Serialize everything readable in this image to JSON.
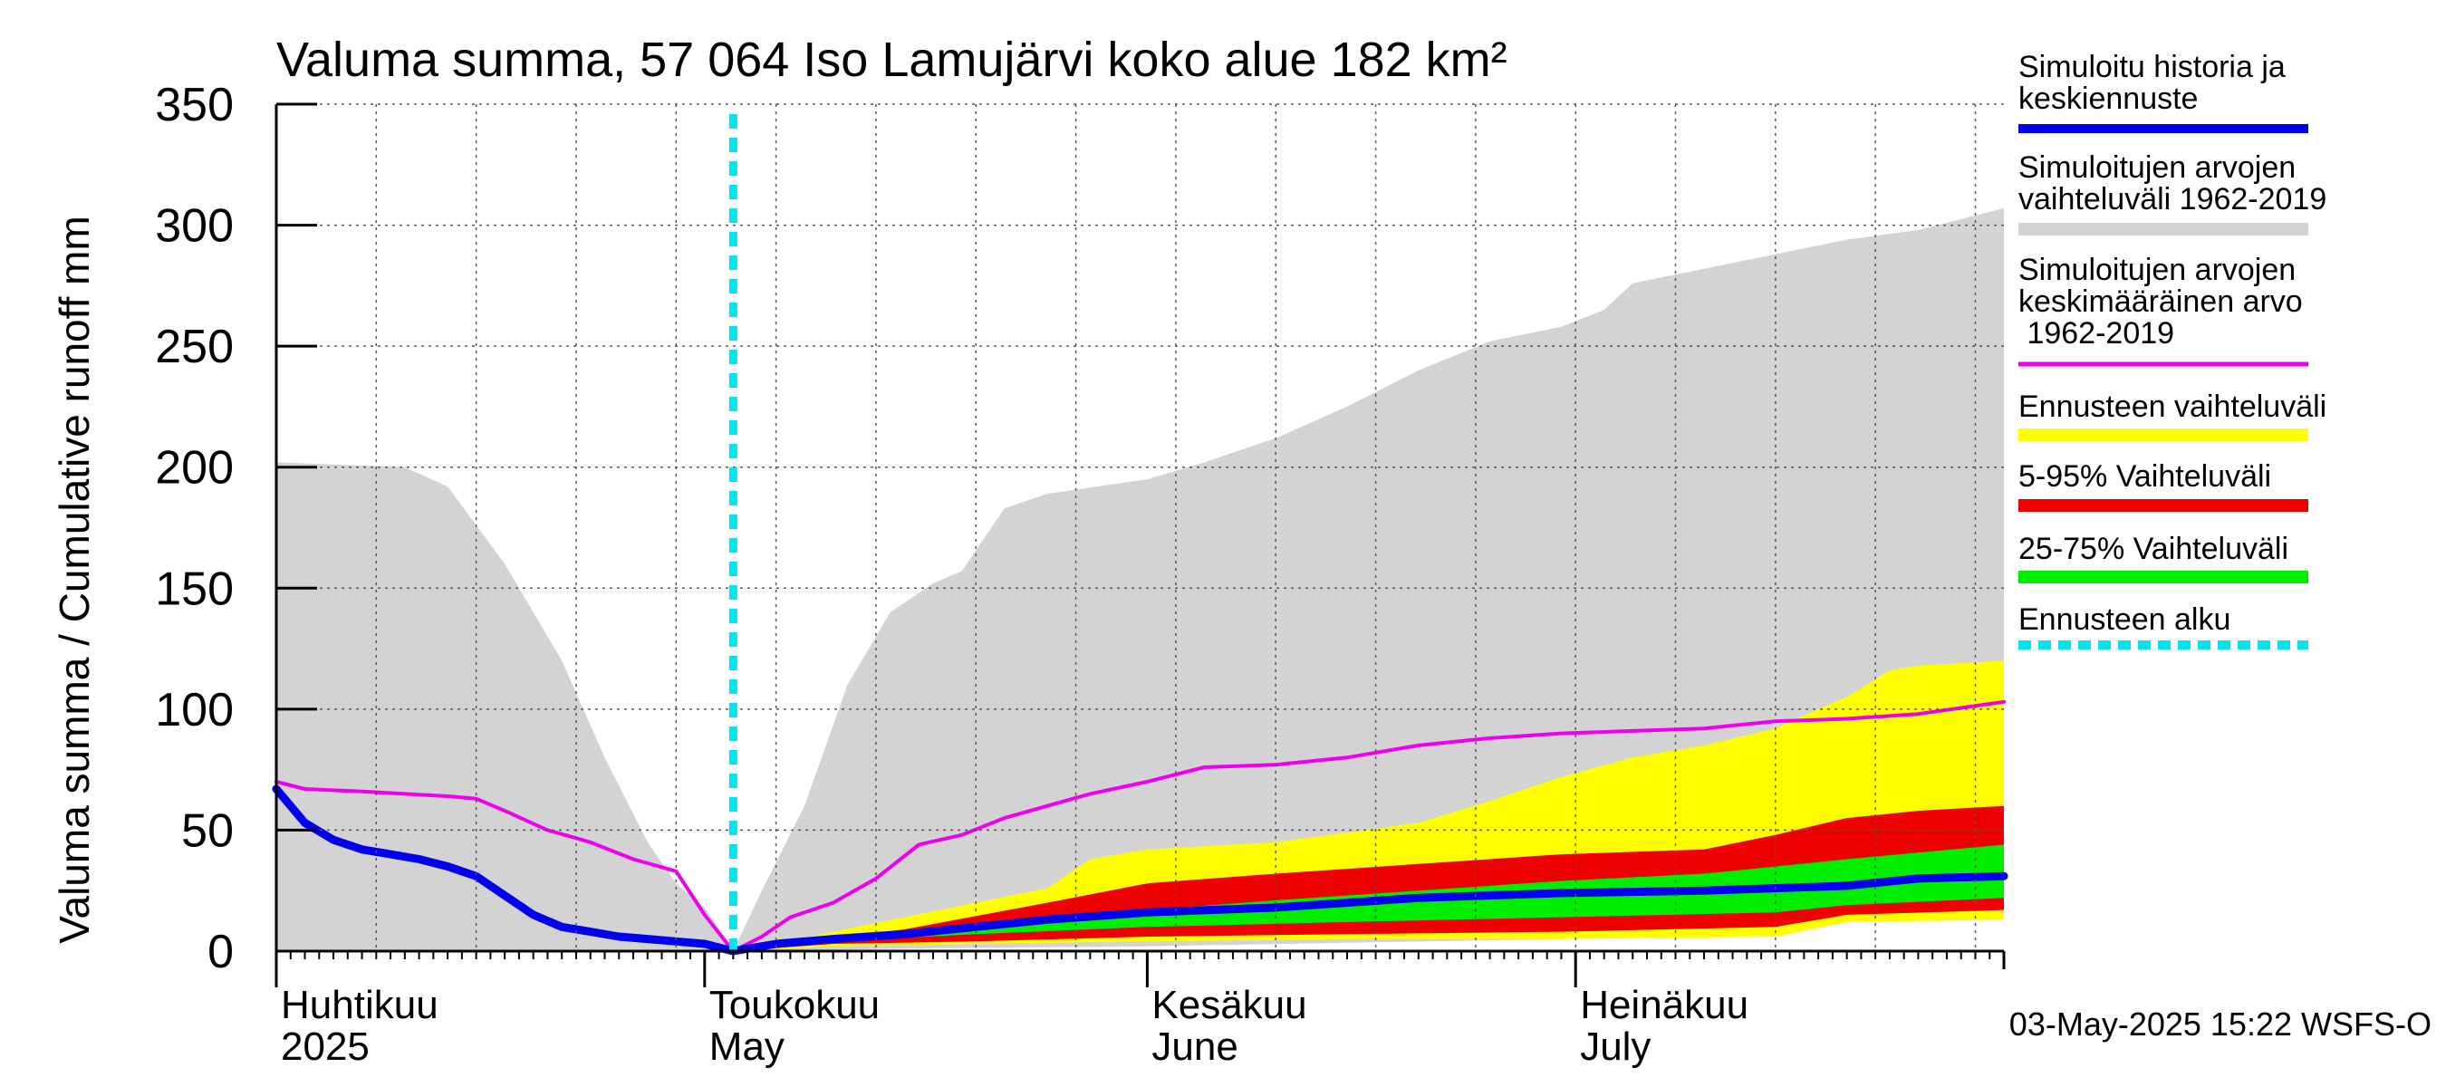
{
  "chart_data": {
    "type": "area",
    "title": "Valuma summa, 57 064 Iso Lamujärvi koko alue 182 km²",
    "ylabel": "Valuma summa / Cumulative runoff    mm",
    "ylim": [
      0,
      350
    ],
    "yticks": [
      0,
      50,
      100,
      150,
      200,
      250,
      300,
      350
    ],
    "grid": true,
    "legend_position": "right",
    "x_start": "2025-04-01",
    "x_end": "2025-07-31",
    "forecast_start": "2025-05-03",
    "month_labels": [
      {
        "date": "2025-04-01",
        "line1": "Huhtikuu",
        "line2": "2025"
      },
      {
        "date": "2025-05-01",
        "line1": "Toukokuu",
        "line2": "May"
      },
      {
        "date": "2025-06-01",
        "line1": "Kesäkuu",
        "line2": "June"
      },
      {
        "date": "2025-07-01",
        "line1": "Heinäkuu",
        "line2": "July"
      }
    ],
    "timestamp": "03-May-2025 15:22 WSFS-O",
    "legend": [
      {
        "label": "Simuloitu historia ja keskiennuste",
        "color": "#0000ee",
        "style": "line"
      },
      {
        "label": "Simuloitujen arvojen vaihteluväli 1962-2019",
        "color": "#d3d3d3",
        "style": "band"
      },
      {
        "label": "Simuloitujen arvojen keskimääräinen arvo 1962-2019",
        "color": "#ee00ee",
        "style": "line"
      },
      {
        "label": "Ennusteen vaihteluväli",
        "color": "#ffff00",
        "style": "band"
      },
      {
        "label": "5-95% Vaihteluväli",
        "color": "#ee0000",
        "style": "band"
      },
      {
        "label": "25-75% Vaihteluväli",
        "color": "#00ee00",
        "style": "band"
      },
      {
        "label": "Ennusteen alku",
        "color": "#00e5ee",
        "style": "dashed"
      }
    ],
    "series": [
      {
        "name": "Simuloitujen arvojen vaihteluväli 1962-2019 (max)",
        "color": "#d3d3d3",
        "x": [
          "2025-04-01",
          "2025-04-10",
          "2025-04-13",
          "2025-04-17",
          "2025-04-21",
          "2025-04-24",
          "2025-04-27",
          "2025-04-29",
          "2025-05-01",
          "2025-05-03",
          "2025-05-05",
          "2025-05-08",
          "2025-05-11",
          "2025-05-14",
          "2025-05-17",
          "2025-05-19",
          "2025-05-22",
          "2025-05-25",
          "2025-06-01",
          "2025-06-05",
          "2025-06-10",
          "2025-06-15",
          "2025-06-20",
          "2025-06-25",
          "2025-06-30",
          "2025-07-03",
          "2025-07-05",
          "2025-07-10",
          "2025-07-15",
          "2025-07-20",
          "2025-07-25",
          "2025-07-31"
        ],
        "values": [
          202,
          200,
          192,
          160,
          120,
          80,
          45,
          28,
          18,
          0,
          25,
          60,
          110,
          140,
          152,
          157,
          183,
          189,
          195,
          202,
          212,
          225,
          240,
          252,
          258,
          265,
          276,
          282,
          288,
          294,
          298,
          307
        ]
      },
      {
        "name": "Simuloitujen arvojen vaihteluväli 1962-2019 (min)",
        "color": "#d3d3d3",
        "x": [
          "2025-04-01",
          "2025-04-20",
          "2025-05-03",
          "2025-05-15",
          "2025-06-01",
          "2025-06-30",
          "2025-07-15",
          "2025-07-20",
          "2025-07-31"
        ],
        "values": [
          0,
          0,
          0,
          1,
          2,
          5,
          8,
          12,
          18
        ]
      },
      {
        "name": "Simuloitujen arvojen keskimääräinen arvo 1962-2019",
        "color": "#ee00ee",
        "x": [
          "2025-04-01",
          "2025-04-03",
          "2025-04-07",
          "2025-04-10",
          "2025-04-13",
          "2025-04-15",
          "2025-04-17",
          "2025-04-20",
          "2025-04-23",
          "2025-04-26",
          "2025-04-29",
          "2025-05-01",
          "2025-05-03",
          "2025-05-05",
          "2025-05-07",
          "2025-05-10",
          "2025-05-13",
          "2025-05-16",
          "2025-05-19",
          "2025-05-22",
          "2025-05-25",
          "2025-05-28",
          "2025-06-01",
          "2025-06-05",
          "2025-06-10",
          "2025-06-15",
          "2025-06-20",
          "2025-06-25",
          "2025-06-30",
          "2025-07-05",
          "2025-07-10",
          "2025-07-15",
          "2025-07-20",
          "2025-07-25",
          "2025-07-31"
        ],
        "values": [
          70,
          67,
          66,
          65,
          64,
          63,
          58,
          50,
          45,
          38,
          33,
          15,
          0,
          6,
          14,
          20,
          30,
          44,
          48,
          55,
          60,
          65,
          70,
          76,
          77,
          80,
          85,
          88,
          90,
          91,
          92,
          95,
          96,
          98,
          103
        ]
      },
      {
        "name": "Ennusteen vaihteluväli (max)",
        "color": "#ffff00",
        "x": [
          "2025-05-03",
          "2025-05-06",
          "2025-05-10",
          "2025-05-15",
          "2025-05-20",
          "2025-05-25",
          "2025-05-28",
          "2025-06-01",
          "2025-06-10",
          "2025-06-20",
          "2025-06-25",
          "2025-06-30",
          "2025-07-05",
          "2025-07-10",
          "2025-07-15",
          "2025-07-18",
          "2025-07-20",
          "2025-07-23",
          "2025-07-25",
          "2025-07-31"
        ],
        "values": [
          0,
          3,
          8,
          14,
          20,
          26,
          38,
          42,
          45,
          53,
          62,
          72,
          80,
          85,
          92,
          100,
          105,
          116,
          118,
          120
        ]
      },
      {
        "name": "Ennusteen vaihteluväli (min)",
        "color": "#ffff00",
        "x": [
          "2025-05-03",
          "2025-05-10",
          "2025-05-20",
          "2025-06-01",
          "2025-06-15",
          "2025-06-30",
          "2025-07-15",
          "2025-07-20",
          "2025-07-31"
        ],
        "values": [
          0,
          2,
          3,
          4,
          5,
          5,
          6,
          12,
          13
        ]
      },
      {
        "name": "5-95% Vaihteluväli (max)",
        "color": "#ee0000",
        "x": [
          "2025-05-03",
          "2025-05-08",
          "2025-05-15",
          "2025-05-25",
          "2025-06-01",
          "2025-06-10",
          "2025-06-20",
          "2025-06-30",
          "2025-07-10",
          "2025-07-15",
          "2025-07-20",
          "2025-07-25",
          "2025-07-31"
        ],
        "values": [
          0,
          4,
          9,
          20,
          28,
          32,
          36,
          40,
          42,
          48,
          55,
          58,
          60
        ]
      },
      {
        "name": "5-95% Vaihteluväli (min)",
        "color": "#ee0000",
        "x": [
          "2025-05-03",
          "2025-05-10",
          "2025-05-20",
          "2025-06-01",
          "2025-06-15",
          "2025-06-30",
          "2025-07-15",
          "2025-07-20",
          "2025-07-31"
        ],
        "values": [
          0,
          3,
          4,
          6,
          7,
          8,
          10,
          15,
          17
        ]
      },
      {
        "name": "25-75% Vaihteluväli (max)",
        "color": "#00ee00",
        "x": [
          "2025-05-03",
          "2025-05-10",
          "2025-05-20",
          "2025-06-01",
          "2025-06-10",
          "2025-06-20",
          "2025-06-30",
          "2025-07-10",
          "2025-07-20",
          "2025-07-31"
        ],
        "values": [
          0,
          6,
          11,
          17,
          21,
          25,
          29,
          32,
          38,
          44
        ]
      },
      {
        "name": "25-75% Vaihteluväli (min)",
        "color": "#00ee00",
        "x": [
          "2025-05-03",
          "2025-05-10",
          "2025-05-20",
          "2025-06-01",
          "2025-06-15",
          "2025-06-30",
          "2025-07-15",
          "2025-07-20",
          "2025-07-31"
        ],
        "values": [
          0,
          4,
          7,
          10,
          12,
          14,
          16,
          19,
          22
        ]
      },
      {
        "name": "Simuloitu historia ja keskiennuste",
        "color": "#0000ee",
        "x": [
          "2025-04-01",
          "2025-04-03",
          "2025-04-05",
          "2025-04-07",
          "2025-04-09",
          "2025-04-11",
          "2025-04-13",
          "2025-04-15",
          "2025-04-17",
          "2025-04-19",
          "2025-04-21",
          "2025-04-23",
          "2025-04-25",
          "2025-04-27",
          "2025-04-29",
          "2025-05-01",
          "2025-05-03",
          "2025-05-06",
          "2025-05-10",
          "2025-05-15",
          "2025-05-20",
          "2025-05-25",
          "2025-06-01",
          "2025-06-10",
          "2025-06-20",
          "2025-06-30",
          "2025-07-10",
          "2025-07-20",
          "2025-07-25",
          "2025-07-31"
        ],
        "values": [
          67,
          53,
          46,
          42,
          40,
          38,
          35,
          31,
          23,
          15,
          10,
          8,
          6,
          5,
          4,
          3,
          0,
          3,
          5,
          7,
          10,
          13,
          16,
          18,
          22,
          24,
          25,
          27,
          30,
          31
        ]
      }
    ]
  }
}
